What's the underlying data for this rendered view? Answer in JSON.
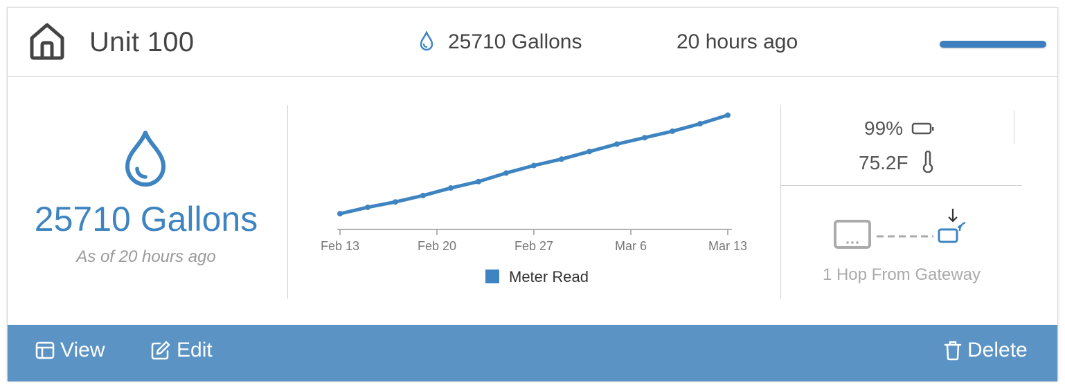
{
  "header": {
    "unit_title": "Unit 100",
    "gallons": "25710 Gallons",
    "last_read": "20 hours ago",
    "status_bar_color": "#3d7fbe"
  },
  "summary": {
    "gallons": "25710 Gallons",
    "as_of": "As of 20 hours ago"
  },
  "status": {
    "battery": "99%",
    "temperature": "75.2F",
    "hops": "1 Hop From Gateway"
  },
  "actions": {
    "view": "View",
    "edit": "Edit",
    "delete": "Delete"
  },
  "colors": {
    "accent": "#3d84c0",
    "footer": "#5b93c4"
  },
  "icons": [
    "home-icon",
    "water-drop-icon",
    "battery-icon",
    "thermometer-icon",
    "meter-device-icon",
    "gateway-icon",
    "view-icon",
    "edit-icon",
    "trash-icon"
  ],
  "chart_data": {
    "type": "line",
    "x_ticks": [
      "Feb 13",
      "Feb 20",
      "Feb 27",
      "Mar 6",
      "Mar 13"
    ],
    "legend": [
      {
        "name": "Meter Read",
        "color": "#3d84c0"
      }
    ],
    "series": [
      {
        "name": "Meter Read",
        "x": [
          "Feb 13",
          "Feb 15",
          "Feb 17",
          "Feb 19",
          "Feb 21",
          "Feb 23",
          "Feb 25",
          "Feb 27",
          "Mar 1",
          "Mar 3",
          "Mar 5",
          "Mar 7",
          "Mar 9",
          "Mar 11",
          "Mar 13"
        ],
        "values": [
          0.05,
          0.11,
          0.16,
          0.22,
          0.29,
          0.35,
          0.43,
          0.5,
          0.56,
          0.63,
          0.7,
          0.76,
          0.82,
          0.89,
          0.97
        ]
      }
    ]
  }
}
